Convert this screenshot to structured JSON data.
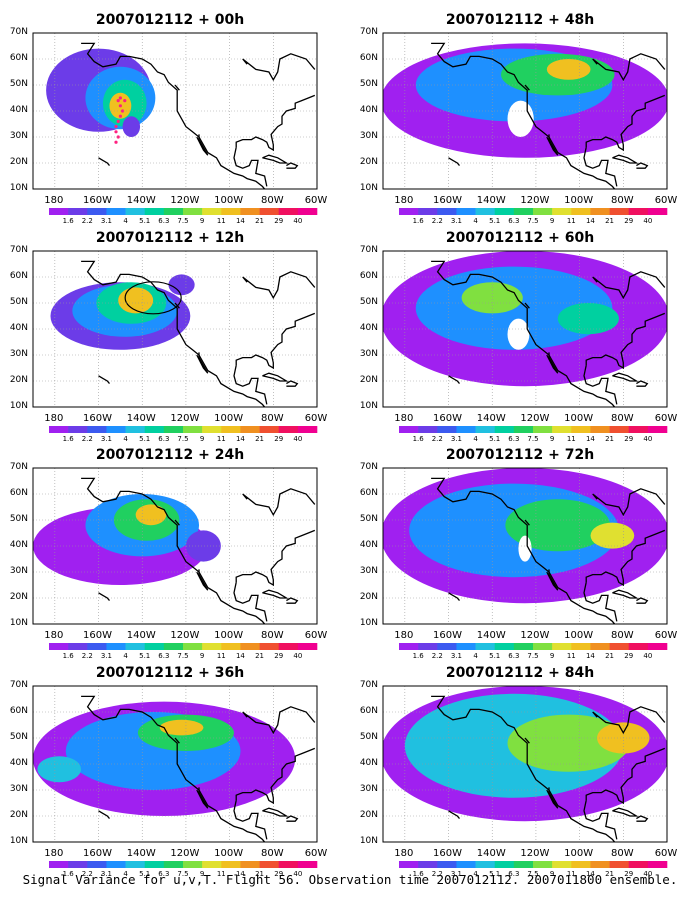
{
  "panels": [
    {
      "title": "2007012112 + 00h",
      "lead_hours": 0
    },
    {
      "title": "2007012112 + 48h",
      "lead_hours": 48
    },
    {
      "title": "2007012112 + 12h",
      "lead_hours": 12
    },
    {
      "title": "2007012112 + 60h",
      "lead_hours": 60
    },
    {
      "title": "2007012112 + 24h",
      "lead_hours": 24
    },
    {
      "title": "2007012112 + 72h",
      "lead_hours": 72
    },
    {
      "title": "2007012112 + 36h",
      "lead_hours": 36
    },
    {
      "title": "2007012112 + 84h",
      "lead_hours": 84
    }
  ],
  "map_axes": {
    "lat_labels": [
      "70N",
      "60N",
      "50N",
      "40N",
      "30N",
      "20N",
      "10N"
    ],
    "lon_labels": [
      "180",
      "160W",
      "140W",
      "120W",
      "100W",
      "80W",
      "60W"
    ]
  },
  "colorbar": {
    "levels": [
      "1.6",
      "2.2",
      "3.1",
      "4",
      "5.1",
      "6.3",
      "7.5",
      "9",
      "11",
      "14",
      "21",
      "29",
      "40"
    ],
    "colors": [
      "#a020f0",
      "#6c3ce8",
      "#3c5af0",
      "#1e90ff",
      "#20c0e0",
      "#00d0a0",
      "#20d060",
      "#80e040",
      "#e0e030",
      "#f0c020",
      "#f09020",
      "#f05030",
      "#f01060",
      "#f00090"
    ]
  },
  "caption": "Signal Variance for u,v,T. Flight 56. Observation time 2007012112. 2007011800 ensemble."
}
